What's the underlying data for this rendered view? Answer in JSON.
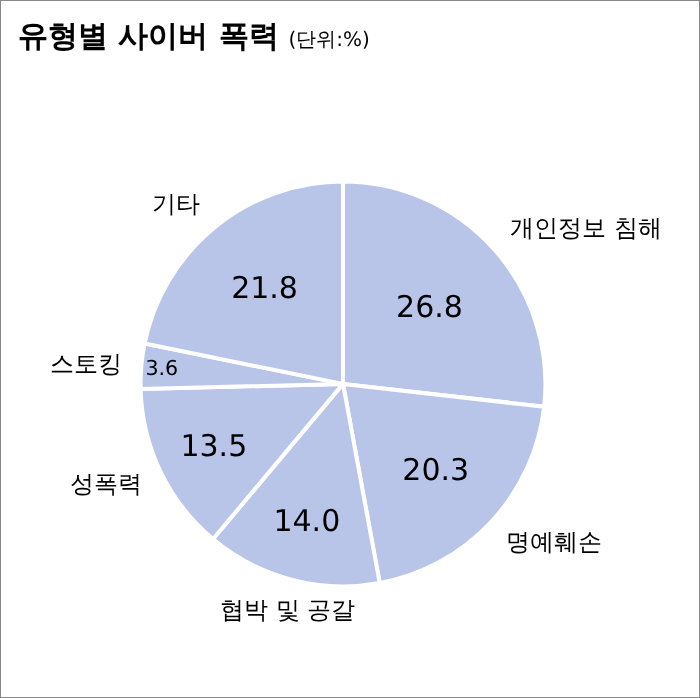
{
  "chart_data": {
    "type": "pie",
    "title": "유형별 사이버 폭력",
    "subtitle": "(단위:%)",
    "categories": [
      "개인정보 침해",
      "명예훼손",
      "협박 및 공갈",
      "성폭력",
      "스토킹",
      "기타"
    ],
    "values": [
      26.8,
      20.3,
      14.0,
      13.5,
      3.6,
      21.8
    ],
    "colors": [
      "#b8c4e8",
      "#b8c4e8",
      "#b8c4e8",
      "#b8c4e8",
      "#b8c4e8",
      "#b8c4e8"
    ],
    "value_labels": [
      "26.8",
      "20.3",
      "14.0",
      "13.5",
      "3.6",
      "21.8"
    ]
  }
}
